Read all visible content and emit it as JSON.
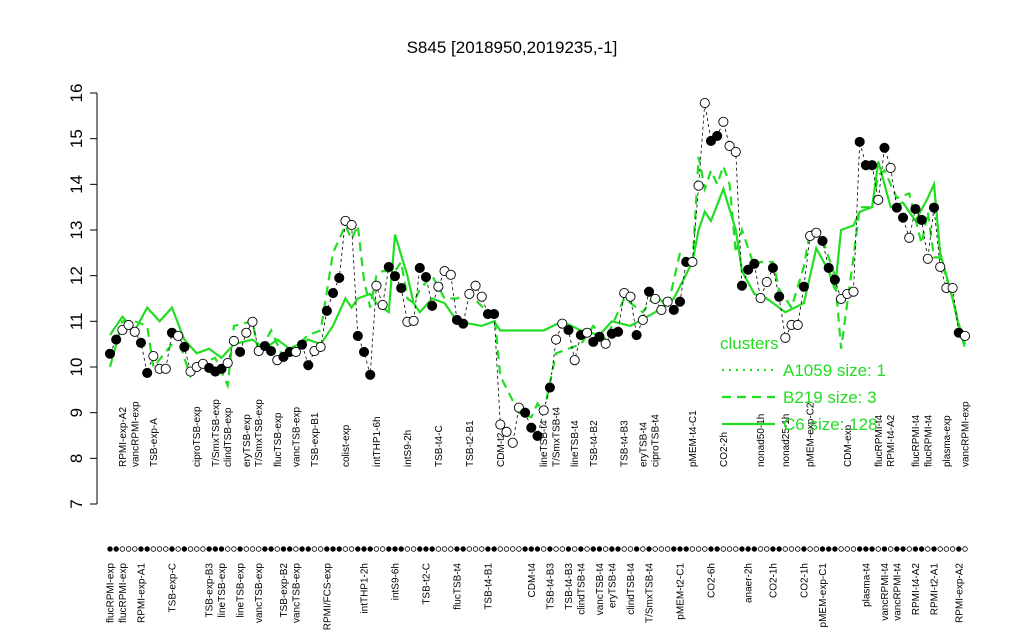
{
  "chart_data": {
    "type": "scatter",
    "title": "S845 [2018950,2019235,-1]",
    "ylim": [
      7,
      16
    ],
    "yticks": [
      7,
      8,
      9,
      10,
      11,
      12,
      13,
      14,
      15,
      16
    ],
    "xlim": [
      1,
      139
    ],
    "points": {
      "x": [
        1,
        2,
        3,
        4,
        5,
        6,
        7,
        8,
        9,
        10,
        11,
        12,
        13,
        14,
        15,
        16,
        17,
        18,
        19,
        20,
        21,
        22,
        23,
        24,
        25,
        26,
        27,
        28,
        29,
        30,
        31,
        32,
        33,
        34,
        35,
        36,
        37,
        38,
        39,
        40,
        41,
        42,
        43,
        44,
        45,
        46,
        47,
        48,
        49,
        50,
        51,
        52,
        53,
        54,
        55,
        56,
        57,
        58,
        59,
        60,
        61,
        62,
        63,
        64,
        65,
        66,
        67,
        68,
        69,
        70,
        71,
        72,
        73,
        74,
        75,
        76,
        77,
        78,
        79,
        80,
        81,
        82,
        83,
        84,
        85,
        86,
        87,
        88,
        89,
        90,
        91,
        92,
        93,
        94,
        95,
        96,
        97,
        98,
        99,
        100,
        101,
        102,
        103,
        104,
        105,
        106,
        107,
        108,
        109,
        110,
        111,
        112,
        113,
        114,
        115,
        116,
        117,
        118,
        119,
        120,
        121,
        122,
        123,
        124,
        125,
        126,
        127,
        128,
        129,
        130,
        131,
        132,
        133,
        134,
        135,
        136,
        137,
        138,
        139
      ],
      "values": [
        10.29,
        10.6,
        10.81,
        10.92,
        10.77,
        10.53,
        9.87,
        10.24,
        9.96,
        9.96,
        10.75,
        10.68,
        10.44,
        9.9,
        10.0,
        10.07,
        9.98,
        9.9,
        9.96,
        10.09,
        10.57,
        10.33,
        10.75,
        10.99,
        10.35,
        10.46,
        10.35,
        10.15,
        10.22,
        10.33,
        10.33,
        10.49,
        10.04,
        10.35,
        10.44,
        11.23,
        11.62,
        11.95,
        13.2,
        13.11,
        10.68,
        10.33,
        9.83,
        11.78,
        11.36,
        12.19,
        11.99,
        11.73,
        10.99,
        11.01,
        12.17,
        11.97,
        11.34,
        11.76,
        12.1,
        12.02,
        11.03,
        10.95,
        11.6,
        11.78,
        11.54,
        11.16,
        11.16,
        8.74,
        8.58,
        8.34,
        9.11,
        9.0,
        8.67,
        8.49,
        9.05,
        9.55,
        10.6,
        10.95,
        10.81,
        10.15,
        10.7,
        10.75,
        10.55,
        10.66,
        10.51,
        10.73,
        10.77,
        11.62,
        11.54,
        10.7,
        11.03,
        11.65,
        11.49,
        11.25,
        11.43,
        11.25,
        11.43,
        12.3,
        12.3,
        13.97,
        15.78,
        14.95,
        15.06,
        15.37,
        14.84,
        14.71,
        11.78,
        12.13,
        12.26,
        11.51,
        11.86,
        12.17,
        11.54,
        10.64,
        10.92,
        10.92,
        11.76,
        12.87,
        12.94,
        12.76,
        12.17,
        11.91,
        11.49,
        11.6,
        11.65,
        14.93,
        14.42,
        14.42,
        13.66,
        14.8,
        14.36,
        13.49,
        13.27,
        12.83,
        13.46,
        13.22,
        12.37,
        13.49,
        12.19,
        11.73,
        11.73,
        10.75,
        10.68
      ],
      "filled": [
        true,
        true,
        false,
        false,
        false,
        true,
        true,
        false,
        false,
        false,
        true,
        false,
        true,
        false,
        false,
        false,
        true,
        true,
        true,
        false,
        false,
        true,
        false,
        false,
        false,
        true,
        true,
        false,
        true,
        true,
        false,
        true,
        true,
        false,
        false,
        true,
        true,
        true,
        false,
        false,
        true,
        true,
        true,
        false,
        false,
        true,
        true,
        true,
        false,
        false,
        true,
        true,
        true,
        false,
        false,
        false,
        true,
        true,
        false,
        false,
        false,
        true,
        true,
        false,
        false,
        false,
        false,
        true,
        true,
        true,
        false,
        true,
        false,
        false,
        true,
        false,
        true,
        false,
        true,
        true,
        false,
        true,
        true,
        false,
        false,
        true,
        false,
        true,
        false,
        false,
        false,
        true,
        true,
        true,
        false,
        false,
        false,
        true,
        true,
        false,
        false,
        false,
        true,
        true,
        true,
        false,
        false,
        true,
        true,
        false,
        false,
        false,
        true,
        false,
        false,
        true,
        true,
        true,
        false,
        false,
        false,
        true,
        true,
        true,
        false,
        true,
        false,
        true,
        true,
        false,
        true,
        true,
        false,
        true,
        false,
        false,
        false,
        true,
        false
      ],
      "color": "#000000"
    },
    "lines": [
      {
        "name": "A1059 size: 1",
        "color": "#22dd22",
        "style": "dotted"
      },
      {
        "name": "B219 size: 3",
        "color": "#22dd22",
        "style": "dashed",
        "x": [
          1,
          3,
          5,
          7,
          8,
          11,
          12,
          13,
          14,
          16,
          18,
          20,
          21,
          24,
          25,
          27,
          29,
          33,
          35,
          37,
          39,
          40,
          41,
          42,
          43,
          44,
          45,
          47,
          48,
          49,
          50,
          51,
          53,
          55,
          57,
          59,
          62,
          63,
          64,
          67,
          69,
          70,
          71,
          73,
          75,
          77,
          79,
          81,
          82,
          84,
          87,
          89,
          91,
          93,
          95,
          96,
          97,
          98,
          99,
          100,
          101,
          102,
          103,
          105,
          106,
          108,
          109,
          111,
          113,
          114,
          116,
          118,
          119,
          121,
          122,
          124,
          125,
          126,
          128,
          130,
          132,
          133,
          134,
          135,
          137,
          139
        ],
        "values": [
          10.0,
          11.0,
          11.0,
          10.9,
          10.0,
          10.5,
          10.7,
          10.2,
          9.8,
          10.1,
          10.2,
          9.6,
          10.9,
          11.0,
          10.3,
          10.8,
          10.2,
          10.7,
          10.8,
          12.5,
          13.1,
          12.8,
          13.1,
          11.9,
          11.3,
          12.0,
          12.1,
          12.1,
          12.3,
          11.5,
          11.4,
          11.7,
          12.0,
          11.5,
          11.5,
          11.6,
          11.2,
          11.2,
          9.8,
          9.0,
          8.9,
          9.2,
          9.0,
          10.3,
          10.4,
          10.5,
          10.9,
          10.6,
          10.9,
          11.5,
          11.2,
          11.6,
          11.3,
          12.5,
          12.2,
          14.6,
          13.9,
          14.3,
          14.0,
          14.4,
          14.0,
          12.5,
          13.0,
          12.2,
          12.3,
          12.3,
          11.7,
          11.3,
          12.2,
          13.0,
          12.8,
          12.0,
          10.4,
          12.4,
          13.5,
          13.5,
          14.2,
          14.3,
          13.7,
          13.8,
          12.7,
          13.4,
          12.4,
          12.4,
          11.5,
          10.4
        ]
      },
      {
        "name": "C6 size: 128",
        "color": "#22dd22",
        "style": "solid",
        "x": [
          1,
          3,
          5,
          7,
          9,
          11,
          13,
          15,
          17,
          19,
          21,
          24,
          26,
          28,
          30,
          33,
          35,
          37,
          39,
          40,
          41,
          43,
          44,
          46,
          47,
          49,
          50,
          51,
          53,
          55,
          57,
          61,
          63,
          64,
          68,
          71,
          74,
          77,
          80,
          82,
          85,
          89,
          92,
          95,
          96,
          97,
          98,
          100,
          102,
          103,
          105,
          107,
          110,
          113,
          115,
          117,
          118,
          119,
          121,
          122,
          124,
          125,
          127,
          129,
          131,
          133,
          134,
          135,
          137,
          138,
          139
        ],
        "values": [
          10.7,
          11.1,
          10.8,
          11.3,
          11.0,
          11.3,
          10.6,
          10.3,
          10.4,
          10.2,
          10.5,
          10.6,
          10.4,
          10.6,
          10.4,
          10.6,
          10.5,
          10.9,
          11.5,
          11.3,
          11.5,
          11.6,
          11.4,
          11.2,
          12.9,
          12.0,
          11.4,
          11.2,
          11.5,
          11.4,
          11.0,
          10.9,
          11.0,
          10.8,
          10.8,
          10.8,
          11.0,
          10.8,
          10.7,
          11.0,
          10.9,
          11.2,
          11.5,
          12.3,
          13.0,
          13.4,
          13.2,
          13.9,
          13.0,
          12.1,
          11.6,
          11.5,
          11.2,
          11.4,
          12.6,
          12.1,
          11.7,
          13.0,
          13.1,
          13.4,
          13.5,
          14.5,
          13.5,
          13.6,
          13.2,
          13.7,
          14.0,
          12.5,
          11.5,
          10.9,
          10.5
        ]
      }
    ],
    "legend": {
      "title": "clusters",
      "position": "right"
    },
    "xticks_top": [
      {
        "value": 3,
        "label": "RPMI-exp-A2"
      },
      {
        "value": 5,
        "label": "vancRPMI-exp"
      },
      {
        "value": 8,
        "label": "TSB-exp-A"
      },
      {
        "value": 15,
        "label": "ciproTSB-exp"
      },
      {
        "value": 18,
        "label": "T/SmxTSB-exp"
      },
      {
        "value": 20,
        "label": "clindTSB-exp"
      },
      {
        "value": 23,
        "label": "eryTSB-exp"
      },
      {
        "value": 25,
        "label": "T/SmxTSB-exp"
      },
      {
        "value": 28,
        "label": "flucTSB-exp"
      },
      {
        "value": 31,
        "label": "vancTSB-exp"
      },
      {
        "value": 34,
        "label": "TSB-exp-B1"
      },
      {
        "value": 39,
        "label": "colist-exp"
      },
      {
        "value": 44,
        "label": "intTHP1-6h"
      },
      {
        "value": 49,
        "label": "intS9-2h"
      },
      {
        "value": 54,
        "label": "TSB-t4-C"
      },
      {
        "value": 59,
        "label": "TSB-t2-B1"
      },
      {
        "value": 64,
        "label": "CDM-t2"
      },
      {
        "value": 71,
        "label": "lineTSB-t4"
      },
      {
        "value": 73,
        "label": "T/SmxTSB-t4"
      },
      {
        "value": 76,
        "label": "lineTSB-t4"
      },
      {
        "value": 79,
        "label": "TSB-t4-B2"
      },
      {
        "value": 84,
        "label": "TSB-t4-B3"
      },
      {
        "value": 87,
        "label": "eryTSB-t4"
      },
      {
        "value": 89,
        "label": "ciproTSB-t4"
      },
      {
        "value": 95,
        "label": "pMEM-t4-C1"
      },
      {
        "value": 100,
        "label": "CO2-2h"
      },
      {
        "value": 106,
        "label": "nonad50-1h"
      },
      {
        "value": 110,
        "label": "nonad25-1h"
      },
      {
        "value": 114,
        "label": "pMEM-exp-C2"
      },
      {
        "value": 120,
        "label": "CDM-exp"
      },
      {
        "value": 125,
        "label": "flucRPMI-t4"
      },
      {
        "value": 127,
        "label": "RPMI-t4-A2"
      },
      {
        "value": 131,
        "label": "flucRPMI-t4"
      },
      {
        "value": 133,
        "label": "flucRPMI-t4"
      },
      {
        "value": 136,
        "label": "plasma-exp"
      },
      {
        "value": 139,
        "label": "vancRPMI-exp"
      }
    ],
    "xticks_bottom": [
      {
        "value": 1,
        "label": "flucRPMI-exp"
      },
      {
        "value": 3,
        "label": "flucRPMI-exp"
      },
      {
        "value": 6,
        "label": "RPMI-exp-A1"
      },
      {
        "value": 11,
        "label": "TSB-exp-C"
      },
      {
        "value": 17,
        "label": "TSB-exp-B3"
      },
      {
        "value": 19,
        "label": "lineTSB-exp"
      },
      {
        "value": 22,
        "label": "lineTSB-exp"
      },
      {
        "value": 25,
        "label": "vancTSB-exp"
      },
      {
        "value": 29,
        "label": "TSB-exp-B2"
      },
      {
        "value": 31,
        "label": "vancTSB-exp"
      },
      {
        "value": 36,
        "label": "RPMI/FCS-exp"
      },
      {
        "value": 42,
        "label": "intTHP1-2h"
      },
      {
        "value": 47,
        "label": "intS9-6h"
      },
      {
        "value": 52,
        "label": "TSB-t2-C"
      },
      {
        "value": 57,
        "label": "flucTSB-t4"
      },
      {
        "value": 62,
        "label": "TSB-t4-B1"
      },
      {
        "value": 69,
        "label": "CDM-t4"
      },
      {
        "value": 72,
        "label": "TSB-t4-B3"
      },
      {
        "value": 75,
        "label": "TSB-t4-B3"
      },
      {
        "value": 77,
        "label": "clindTSB-t4"
      },
      {
        "value": 80,
        "label": "vancTSB-t4"
      },
      {
        "value": 82,
        "label": "eryTSB-t4"
      },
      {
        "value": 85,
        "label": "clindTSB-t4"
      },
      {
        "value": 88,
        "label": "T/SmxTSB-t4"
      },
      {
        "value": 93,
        "label": "pMEM-t2-C1"
      },
      {
        "value": 98,
        "label": "CO2-6h"
      },
      {
        "value": 104,
        "label": "anaer-2h"
      },
      {
        "value": 108,
        "label": "CO2-1h"
      },
      {
        "value": 113,
        "label": "CO2-1h"
      },
      {
        "value": 116,
        "label": "pMEM-exp-C1"
      },
      {
        "value": 123,
        "label": "plasma-t4"
      },
      {
        "value": 126,
        "label": "vancRPMI-t4"
      },
      {
        "value": 128,
        "label": "vancRPMI-t4"
      },
      {
        "value": 131,
        "label": "RPMI-t4-A2"
      },
      {
        "value": 134,
        "label": "RPMI-t2-A1"
      },
      {
        "value": 138,
        "label": "RPMI-exp-A2"
      }
    ]
  }
}
